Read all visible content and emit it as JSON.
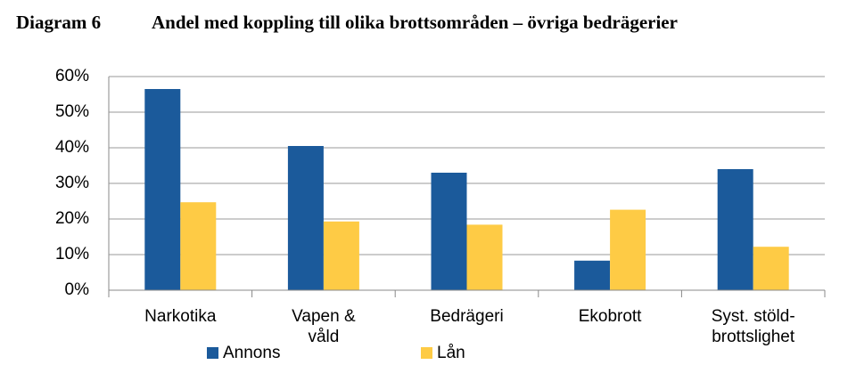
{
  "chart_data": {
    "type": "bar",
    "label": "Diagram 6",
    "title": "Andel med koppling till olika brottsområden – övriga bedrägerier",
    "categories": [
      "Narkotika",
      "Vapen & våld",
      "Bedrägeri",
      "Ekobrott",
      "Syst. stöld-brottslighet"
    ],
    "series": [
      {
        "name": "Annons",
        "color": "#1b5a9b",
        "values": [
          56.5,
          40.5,
          33,
          8.3,
          34
        ]
      },
      {
        "name": "Lån",
        "color": "#fecb45",
        "values": [
          24.7,
          19.3,
          18.4,
          22.6,
          12.2
        ]
      }
    ],
    "ylim": [
      0,
      60
    ],
    "yticks": [
      {
        "value": 0,
        "label": "0%"
      },
      {
        "value": 10,
        "label": "10%"
      },
      {
        "value": 20,
        "label": "20%"
      },
      {
        "value": 30,
        "label": "30%"
      },
      {
        "value": 40,
        "label": "40%"
      },
      {
        "value": 50,
        "label": "50%"
      },
      {
        "value": 60,
        "label": "60%"
      }
    ],
    "grid": true,
    "legend": "bottom"
  }
}
